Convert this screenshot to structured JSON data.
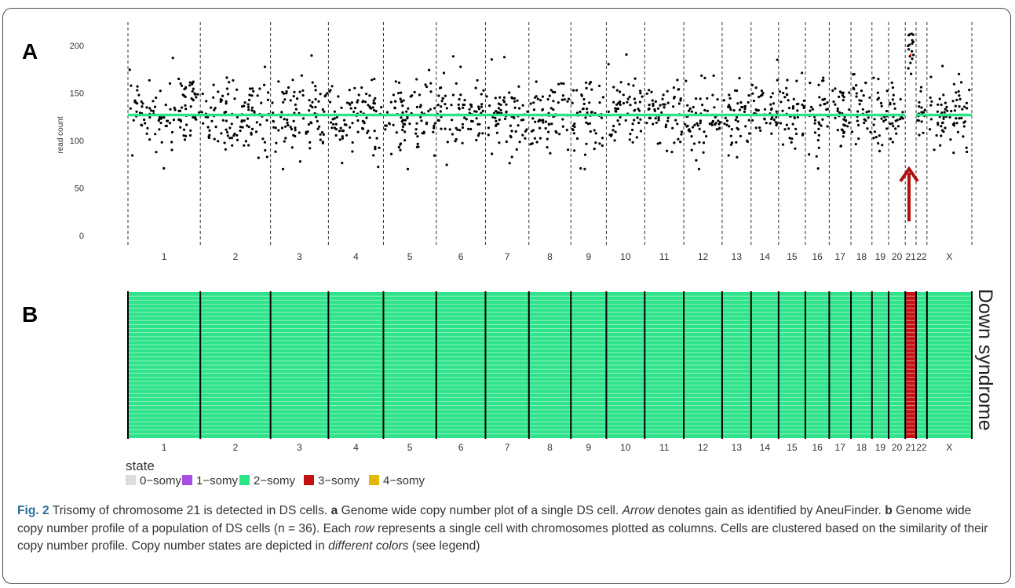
{
  "panel_a_label": "A",
  "panel_b_label": "B",
  "side_label": "Down syndrome",
  "legend": {
    "title": "state",
    "items": [
      {
        "label": "0−somy",
        "color": "#dcdcdc"
      },
      {
        "label": "1−somy",
        "color": "#a64ee6"
      },
      {
        "label": "2−somy",
        "color": "#2ee38a"
      },
      {
        "label": "3−somy",
        "color": "#c41212"
      },
      {
        "label": "4−somy",
        "color": "#e4b800"
      }
    ]
  },
  "caption": {
    "fig_label": "Fig. 2",
    "title": "Trisomy of chromosome 21 is detected in DS cells.",
    "a_label": "a",
    "a_text_1": "Genome wide copy number plot of a single DS cell.",
    "a_italic": "Arrow",
    "a_text_2": "denotes gain as identified by AneuFinder.",
    "b_label": "b",
    "b_text_1": "Genome wide copy number profile of a population of DS cells (n = 36). Each",
    "b_italic_1": "row",
    "b_text_2": "represents a single cell with chromosomes plotted as columns. Cells are clustered based on the similarity of their copy number profile. Copy number states are depicted in",
    "b_italic_2": "different colors",
    "b_text_3": "(see legend)"
  },
  "chart_data": [
    {
      "type": "scatter",
      "panel": "A",
      "ylabel": "read count",
      "yticks": [
        0,
        50,
        100,
        150,
        200
      ],
      "ylim": [
        0,
        225
      ],
      "categories": [
        "1",
        "2",
        "3",
        "4",
        "5",
        "6",
        "7",
        "8",
        "9",
        "10",
        "11",
        "12",
        "13",
        "14",
        "15",
        "16",
        "17",
        "18",
        "19",
        "20",
        "21",
        "22",
        "X"
      ],
      "chromosome_relative_length": [
        10,
        9.7,
        8,
        7.6,
        7.3,
        6.8,
        6,
        5.8,
        4.9,
        5.3,
        5.4,
        5.3,
        4,
        3.8,
        3.7,
        3.3,
        3,
        2.9,
        2.3,
        2.3,
        1.5,
        1.5,
        6.2
      ],
      "read_count_center": [
        127,
        127,
        127,
        127,
        127,
        127,
        127,
        127,
        127,
        127,
        127,
        127,
        127,
        127,
        127,
        127,
        127,
        127,
        127,
        127,
        190,
        127,
        127
      ],
      "read_count_spread": 18,
      "copy_number_segment_y": [
        127,
        127,
        127,
        127,
        127,
        127,
        127,
        127,
        127,
        127,
        127,
        127,
        127,
        127,
        127,
        127,
        127,
        127,
        127,
        127,
        190,
        127,
        127
      ],
      "segment_colors": {
        "2-somy": "#2ee38a",
        "3-somy": "#c41212"
      },
      "annotation": "arrow pointing to chromosome 21 gain",
      "grid": "vertical dashed chromosome separators"
    },
    {
      "type": "heatmap",
      "panel": "B",
      "rows": 36,
      "columns": [
        "1",
        "2",
        "3",
        "4",
        "5",
        "6",
        "7",
        "8",
        "9",
        "10",
        "11",
        "12",
        "13",
        "14",
        "15",
        "16",
        "17",
        "18",
        "19",
        "20",
        "21",
        "22",
        "X"
      ],
      "state_by_column": [
        "2-somy",
        "2-somy",
        "2-somy",
        "2-somy",
        "2-somy",
        "2-somy",
        "2-somy",
        "2-somy",
        "2-somy",
        "2-somy",
        "2-somy",
        "2-somy",
        "2-somy",
        "2-somy",
        "2-somy",
        "2-somy",
        "2-somy",
        "2-somy",
        "2-somy",
        "2-somy",
        "3-somy",
        "2-somy",
        "2-somy"
      ],
      "state_colors": {
        "2-somy": "#2ee38a",
        "3-somy": "#c41212"
      }
    }
  ]
}
